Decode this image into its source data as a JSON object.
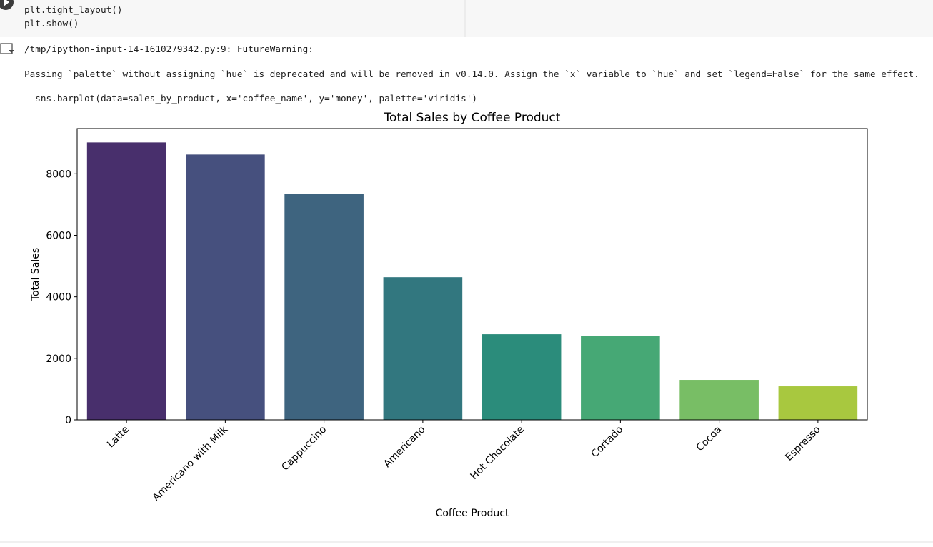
{
  "notebook": {
    "code_lines": [
      "plt.tight_layout()",
      "plt.show()"
    ],
    "output_lines": [
      "/tmp/ipython-input-14-1610279342.py:9: FutureWarning:",
      "Passing `palette` without assigning `hue` is deprecated and will be removed in v0.14.0. Assign the `x` variable to `hue` and set `legend=False` for the same effect.",
      "  sns.barplot(data=sales_by_product, x='coffee_name', y='money', palette='viridis')"
    ]
  },
  "chart_data": {
    "type": "bar",
    "title": "Total Sales by Coffee Product",
    "x_label": "Coffee Product",
    "y_label": "Total Sales",
    "categories": [
      "Latte",
      "Americano with Milk",
      "Cappuccino",
      "Americano",
      "Hot Chocolate",
      "Cortado",
      "Cocoa",
      "Espresso"
    ],
    "values": [
      9020,
      8626,
      7351,
      4638,
      2783,
      2736,
      1299,
      1090
    ],
    "colors": [
      "#482f6c",
      "#46507e",
      "#3e647f",
      "#32777f",
      "#2b8c7b",
      "#46a875",
      "#78be65",
      "#a8c83f"
    ],
    "ylim": [
      0,
      9470
    ],
    "yticks": [
      0,
      2000,
      4000,
      6000,
      8000
    ],
    "grid": false
  }
}
